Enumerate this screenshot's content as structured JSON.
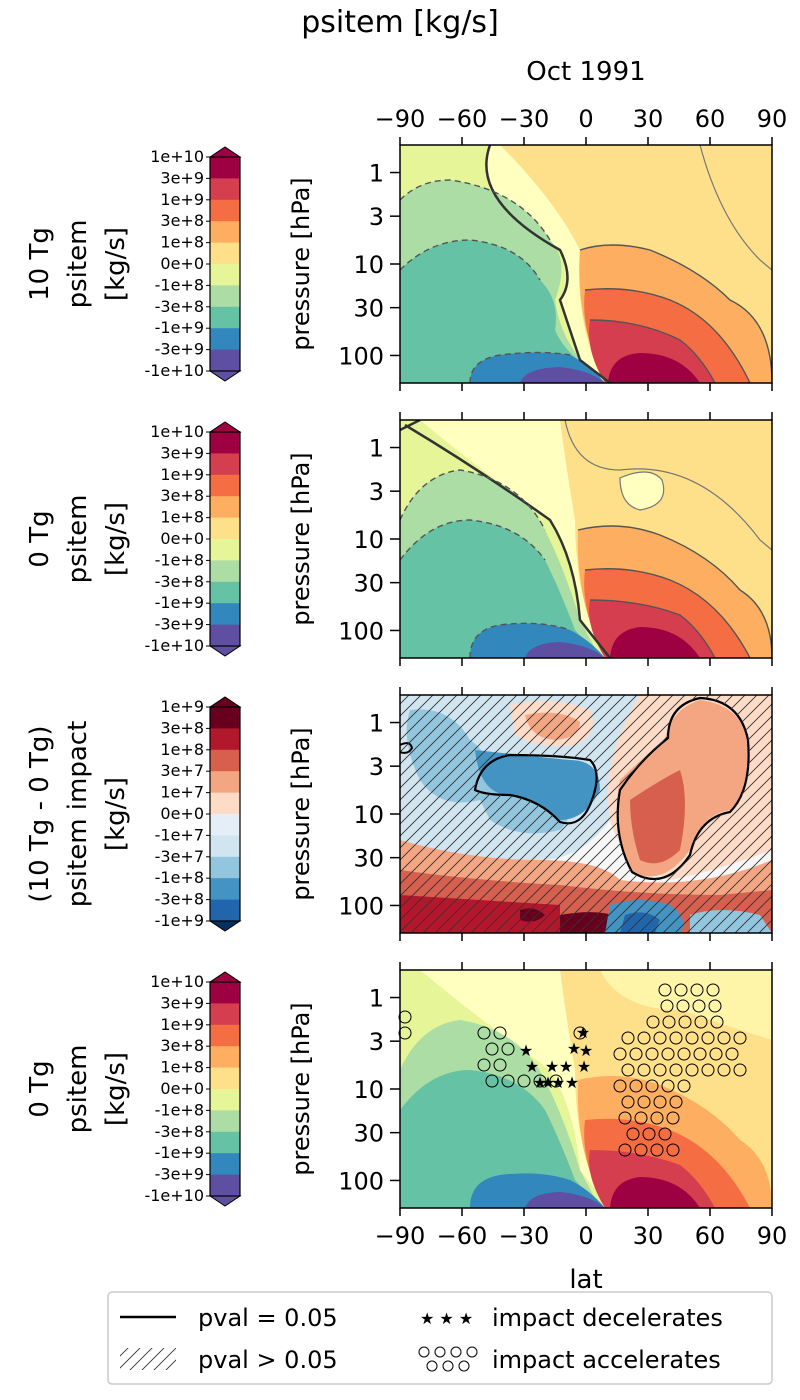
{
  "figure": {
    "title": "psitem [kg/s]",
    "top_axis_label": "Oct 1991",
    "xlabel": "lat",
    "legend": {
      "solid_line": "pval = 0.05",
      "hatch": "pval > 0.05",
      "stars": "impact decelerates",
      "circles": "impact accelerates"
    }
  },
  "chart_data": [
    {
      "type": "heatmap",
      "panel": "10 Tg",
      "colorbar_title": [
        "10 Tg",
        "psitem",
        "[kg/s]"
      ],
      "colorbar_ticks": [
        "1e+10",
        "3e+9",
        "1e+9",
        "3e+8",
        "1e+8",
        "0e+0",
        "-1e+8",
        "-3e+8",
        "-1e+9",
        "-3e+9",
        "-1e+10"
      ],
      "colorbar_colors": [
        "#9e0142",
        "#d53e4f",
        "#f46d43",
        "#fdae61",
        "#fee08b",
        "#ffffbf",
        "#e6f598",
        "#abdda4",
        "#66c2a5",
        "#3288bd",
        "#5e4fa2"
      ],
      "xlabel": "",
      "ylabel": "pressure [hPa]",
      "xticks": [
        -90,
        -60,
        -30,
        0,
        30,
        60,
        90
      ],
      "yticks": [
        1,
        3,
        10,
        30,
        100
      ],
      "ylim": [
        0.5,
        200
      ],
      "colormap": "Spectral_r"
    },
    {
      "type": "heatmap",
      "panel": "0 Tg",
      "colorbar_title": [
        "0 Tg",
        "psitem",
        "[kg/s]"
      ],
      "colorbar_ticks": [
        "1e+10",
        "3e+9",
        "1e+9",
        "3e+8",
        "1e+8",
        "0e+0",
        "-1e+8",
        "-3e+8",
        "-1e+9",
        "-3e+9",
        "-1e+10"
      ],
      "ylabel": "pressure [hPa]",
      "xticks": [
        -90,
        -60,
        -30,
        0,
        30,
        60,
        90
      ],
      "yticks": [
        1,
        3,
        10,
        30,
        100
      ]
    },
    {
      "type": "heatmap",
      "panel": "(10 Tg - 0 Tg) psitem impact",
      "colorbar_title": [
        "(10 Tg - 0 Tg)",
        "psitem impact",
        "[kg/s]"
      ],
      "colorbar_ticks": [
        "1e+9",
        "3e+8",
        "1e+8",
        "3e+7",
        "1e+7",
        "0e+0",
        "-1e+7",
        "-3e+7",
        "-1e+8",
        "-3e+8",
        "-1e+9"
      ],
      "colorbar_colors": [
        "#67001f",
        "#b2182b",
        "#d6604d",
        "#f4a582",
        "#fddbc7",
        "#f7f7f7",
        "#e5eef6",
        "#d1e5f0",
        "#92c5de",
        "#4393c3",
        "#2166ac"
      ],
      "ylabel": "pressure [hPa]",
      "xticks": [
        -90,
        -60,
        -30,
        0,
        30,
        60,
        90
      ],
      "yticks": [
        1,
        3,
        10,
        30,
        100
      ],
      "colormap": "RdBu_r"
    },
    {
      "type": "heatmap",
      "panel": "0 Tg with impact markers",
      "colorbar_title": [
        "0 Tg",
        "psitem",
        "[kg/s]"
      ],
      "colorbar_ticks": [
        "1e+10",
        "3e+9",
        "1e+9",
        "3e+8",
        "1e+8",
        "0e+0",
        "-1e+8",
        "-3e+8",
        "-1e+9",
        "-3e+9",
        "-1e+10"
      ],
      "xlabel": "lat",
      "ylabel": "pressure [hPa]",
      "xticks": [
        -90,
        -60,
        -30,
        0,
        30,
        60,
        90
      ],
      "yticks": [
        1,
        3,
        10,
        30,
        100
      ]
    }
  ]
}
